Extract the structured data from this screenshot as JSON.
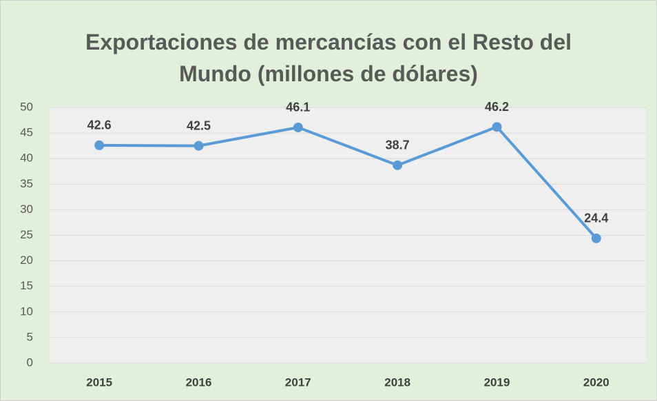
{
  "chart_data": {
    "type": "line",
    "title": "Exportaciones de mercancías con el Resto del Mundo (millones de dólares)",
    "categories": [
      "2015",
      "2016",
      "2017",
      "2018",
      "2019",
      "2020"
    ],
    "values": [
      42.6,
      42.5,
      46.1,
      38.7,
      46.2,
      24.4
    ],
    "color": "#5b9bd5",
    "ylim": [
      0,
      50
    ],
    "yticks": [
      0,
      5,
      10,
      15,
      20,
      25,
      30,
      35,
      40,
      45,
      50
    ],
    "grid": true
  }
}
